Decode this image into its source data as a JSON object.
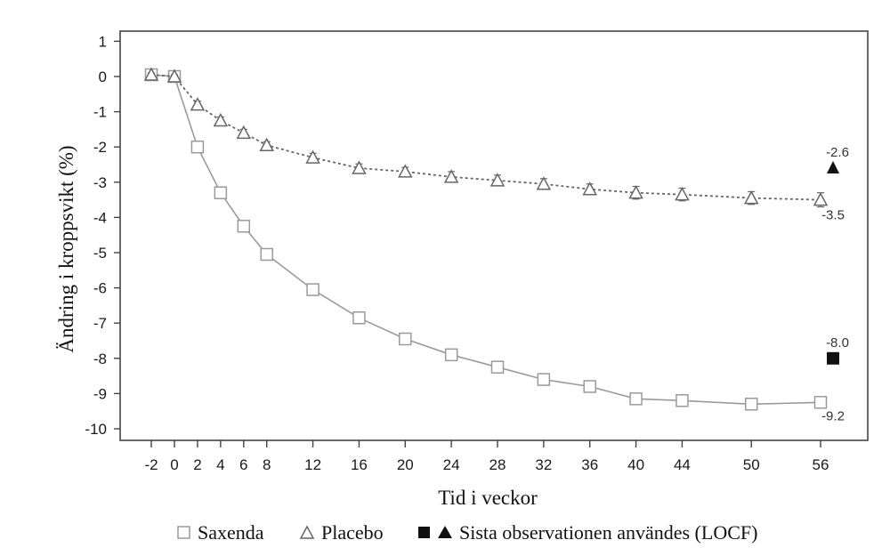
{
  "chart_data": {
    "type": "line",
    "xlabel": "Tid i veckor",
    "ylabel": "Ändring i kroppsvikt (%)",
    "x_ticks": [
      -2,
      0,
      2,
      4,
      6,
      8,
      12,
      16,
      20,
      24,
      28,
      32,
      36,
      40,
      44,
      50,
      56
    ],
    "y_ticks": [
      1,
      0,
      -1,
      -2,
      -3,
      -4,
      -5,
      -6,
      -7,
      -8,
      -9,
      -10
    ],
    "ylim": [
      -10.5,
      1.2
    ],
    "grid": false,
    "legend_position": "bottom",
    "series": [
      {
        "name": "Saxenda",
        "marker": "open-square",
        "line": "solid",
        "color": "#9a9a9a",
        "x": [
          -2,
          0,
          2,
          4,
          6,
          8,
          12,
          16,
          20,
          24,
          28,
          32,
          36,
          40,
          44,
          50,
          56
        ],
        "y": [
          0.05,
          0.0,
          -2.0,
          -3.3,
          -4.25,
          -5.05,
          -6.05,
          -6.85,
          -7.45,
          -7.9,
          -8.25,
          -8.6,
          -8.8,
          -9.15,
          -9.2,
          -9.3,
          -9.25
        ],
        "err": [
          0.05,
          0.05,
          0.1,
          0.1,
          0.1,
          0.1,
          0.1,
          0.1,
          0.1,
          0.1,
          0.1,
          0.1,
          0.15,
          0.15,
          0.15,
          0.15,
          0.15
        ]
      },
      {
        "name": "Placebo",
        "marker": "open-triangle",
        "line": "dotted",
        "color": "#666666",
        "x": [
          -2,
          0,
          2,
          4,
          6,
          8,
          12,
          16,
          20,
          24,
          28,
          32,
          36,
          40,
          44,
          50,
          56
        ],
        "y": [
          0.05,
          0.0,
          -0.8,
          -1.25,
          -1.6,
          -1.95,
          -2.3,
          -2.6,
          -2.7,
          -2.85,
          -2.95,
          -3.05,
          -3.2,
          -3.3,
          -3.35,
          -3.45,
          -3.5
        ],
        "err": [
          0.05,
          0.05,
          0.1,
          0.1,
          0.1,
          0.1,
          0.12,
          0.12,
          0.12,
          0.15,
          0.15,
          0.15,
          0.15,
          0.18,
          0.18,
          0.18,
          0.2
        ]
      }
    ],
    "locf": {
      "label": "Sista observationen användes (LOCF)",
      "points": [
        {
          "series": "Saxenda",
          "marker": "filled-square",
          "y": -8.0,
          "label": "-8.0"
        },
        {
          "series": "Placebo",
          "marker": "filled-triangle",
          "y": -2.6,
          "label": "-2.6"
        }
      ]
    },
    "end_labels": [
      {
        "series": "Saxenda",
        "y": -9.2,
        "label": "-9.2"
      },
      {
        "series": "Placebo",
        "y": -3.5,
        "label": "-3.5"
      }
    ]
  }
}
